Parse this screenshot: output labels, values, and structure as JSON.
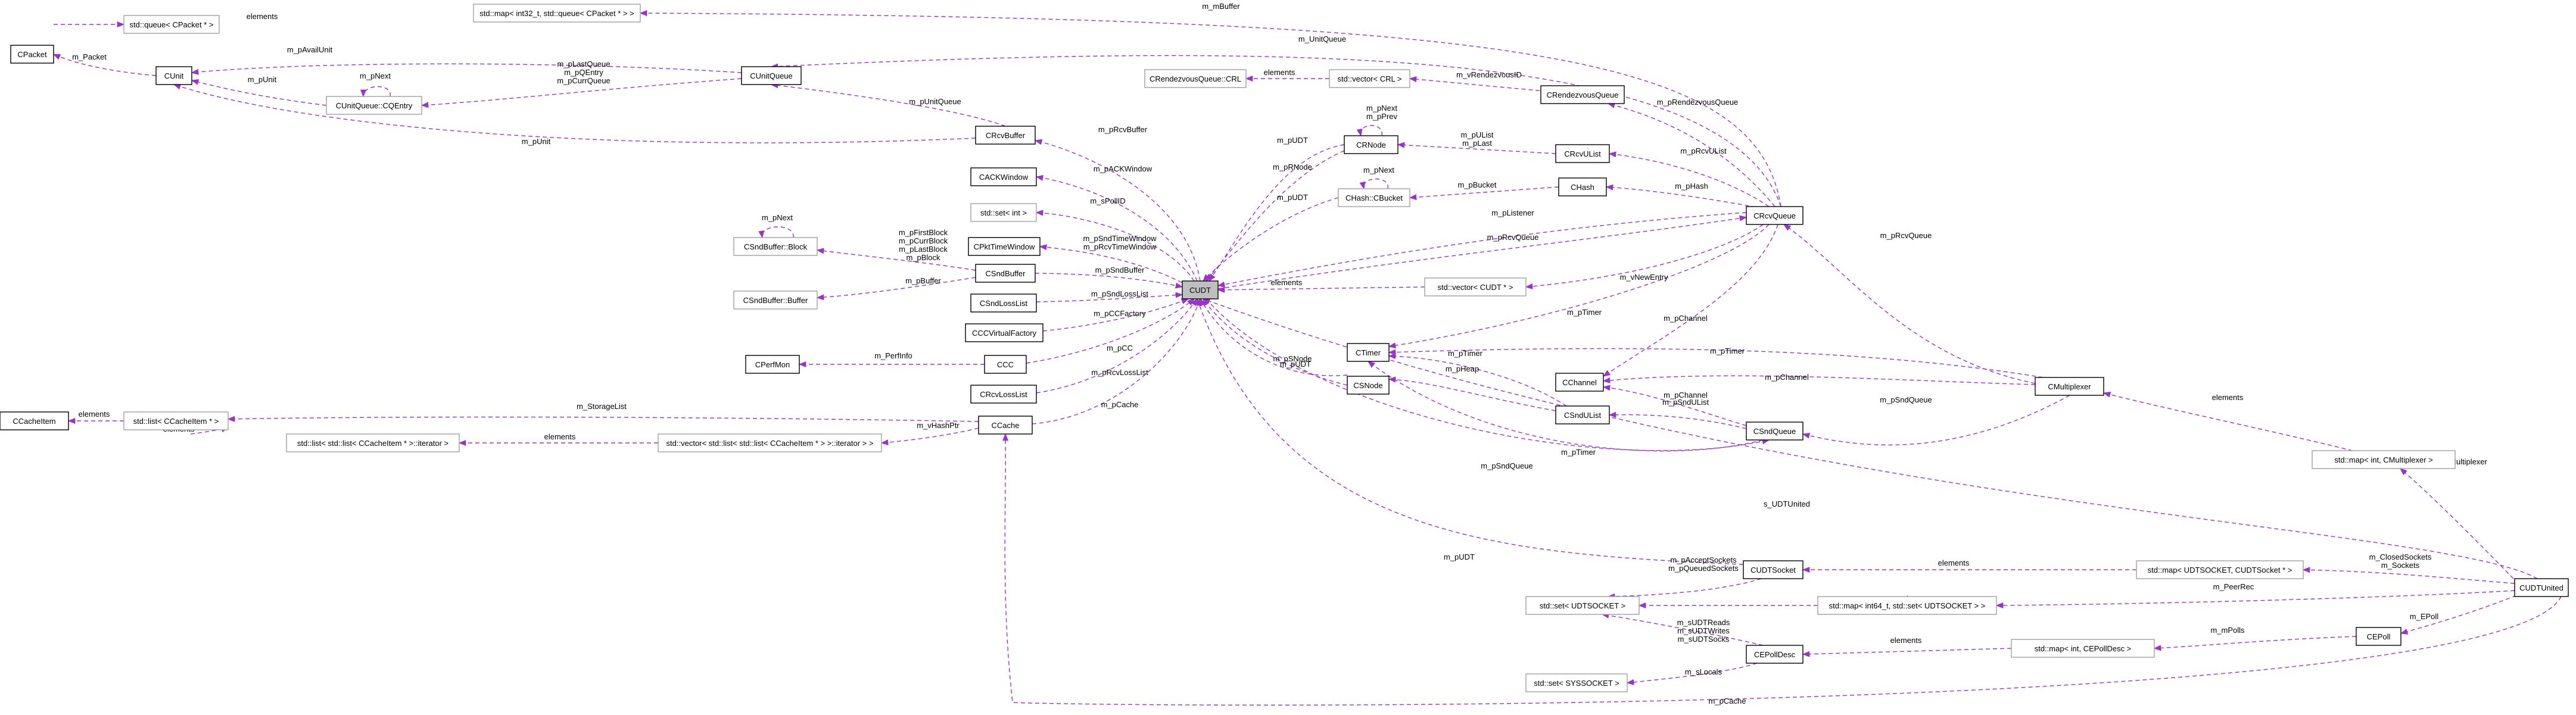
{
  "focus": "CUDT",
  "nodes": {
    "CUDT": "CUDT",
    "CUnitQueue": "CUnitQueue",
    "CUnit": "CUnit",
    "CPacket": "CPacket",
    "queue": "std::queue< CPacket * >",
    "mapq": "std::map< int32_t, std::queue< CPacket * > >",
    "CQEntry": "CUnitQueue::CQEntry",
    "CRcvBuffer": "CRcvBuffer",
    "CACKWindow": "CACKWindow",
    "setint": "std::set< int >",
    "CPktTimeWindow": "CPktTimeWindow",
    "SndBlock": "CSndBuffer::Block",
    "SndBuffer": "CSndBuffer::Buffer",
    "CSndBuffer": "CSndBuffer",
    "CSndLossList": "CSndLossList",
    "CCCVirtualFactory": "CCCVirtualFactory",
    "CPerfMon": "CPerfMon",
    "CCC": "CCC",
    "CRcvLossList": "CRcvLossList",
    "CCacheItem": "CCacheItem",
    "listcache": "std::list< CCacheItem * >",
    "listiter": "std::list< std::list< CCacheItem * >::iterator >",
    "vecllist": "std::vector< std::list< std::list< CCacheItem * > >::iterator > >",
    "CCache": "CCache",
    "CRendezvousQueueCRL": "CRendezvousQueue::CRL",
    "veccrl": "std::vector< CRL >",
    "CRendezvousQueue": "CRendezvousQueue",
    "CRNode": "CRNode",
    "CRcvUList": "CRcvUList",
    "CBucket": "CHash::CBucket",
    "CHash": "CHash",
    "CRcvQueue": "CRcvQueue",
    "vecudt": "std::vector< CUDT * >",
    "CTimer": "CTimer",
    "CSNode": "CSNode",
    "CChannel": "CChannel",
    "CSndUList": "CSndUList",
    "CSndQueue": "CSndQueue",
    "CMultiplexer": "CMultiplexer",
    "mapmux": "std::map< int, CMultiplexer >",
    "CUDTUnited": "CUDTUnited",
    "CUDTSocket": "CUDTSocket",
    "mapsock": "std::map< UDTSOCKET, CUDTSocket * >",
    "setudt": "std::set< UDTSOCKET >",
    "mappeer": "std::map< int64_t, std::set< UDTSOCKET > >",
    "CEPoll": "CEPoll",
    "mapepoll": "std::map< int, CEPollDesc >",
    "CEPollDesc": "CEPollDesc",
    "setsys": "std::set< SYSSOCKET >"
  },
  "edge_labels": {
    "elements": "elements",
    "m_pPacket": "m_Packet",
    "m_pAvailUnit": "m_pAvailUnit",
    "m_pUnit": "m_pUnit",
    "cqentry": "m_pLastQueue\nm_pQEntry\nm_pCurrQueue",
    "m_pNext": "m_pNext",
    "m_pUnitQueue": "m_pUnitQueue",
    "m_pUnit2": "m_pUnit",
    "m_mBuffer": "m_mBuffer",
    "m_UnitQueue": "m_UnitQueue",
    "m_pRcvBuffer": "m_pRcvBuffer",
    "m_pACKWindow": "m_pACKWindow",
    "m_sPollID": "m_sPollID",
    "timewin": "m_pSndTimeWindow\nm_pRcvTimeWindow",
    "sndblocks": "m_pFirstBlock\nm_pCurrBlock\nm_pLastBlock\nm_pBlock",
    "m_pBuffer": "m_pBuffer",
    "m_pSndBuffer": "m_pSndBuffer",
    "m_pSndLossList": "m_pSndLossList",
    "m_pCCFactory": "m_pCCFactory",
    "m_pCC": "m_pCC",
    "m_PerfInfo": "m_PerfInfo",
    "m_pRcvLossList": "m_pRcvLossList",
    "m_pCache": "m_pCache",
    "m_StorageList": "m_StorageList",
    "m_vHashPtr": "m_vHashPtr",
    "m_vRendezvousID": "m_vRendezvousID",
    "m_pRendezvousQueue": "m_pRendezvousQueue",
    "m_pUDT": "m_pUDT",
    "nextprev": "m_pNext\nm_pPrev",
    "m_pRNode": "m_pRNode",
    "ulist": "m_pUList\nm_pLast",
    "m_pRcvUList": "m_pRcvUList",
    "m_pBucket": "m_pBucket",
    "m_pHash": "m_pHash",
    "m_pListener": "m_pListener",
    "m_pRcvQueue": "m_pRcvQueue",
    "m_vNewEntry": "m_vNewEntry",
    "m_pSNode": "m_pSNode",
    "m_pTimer": "m_pTimer",
    "m_pChannel": "m_pChannel",
    "m_pHeap": "m_pHeap",
    "m_pSndUList": "m_pSndUList",
    "m_pSndQueue": "m_pSndQueue",
    "s_UDTUnited": "s_UDTUnited",
    "m_mMultiplexer": "m_mMultiplexer",
    "accept": "m_pAcceptSockets\nm_pQueuedSockets",
    "closed": "m_ClosedSockets\nm_Sockets",
    "m_PeerRec": "m_PeerRec",
    "m_mPolls": "m_mPolls",
    "m_EPoll": "m_EPoll",
    "udtsocks": "m_sUDTReads\nm_sUDTWrites\nm_sUDTSocks",
    "m_sLocals": "m_sLocals"
  }
}
